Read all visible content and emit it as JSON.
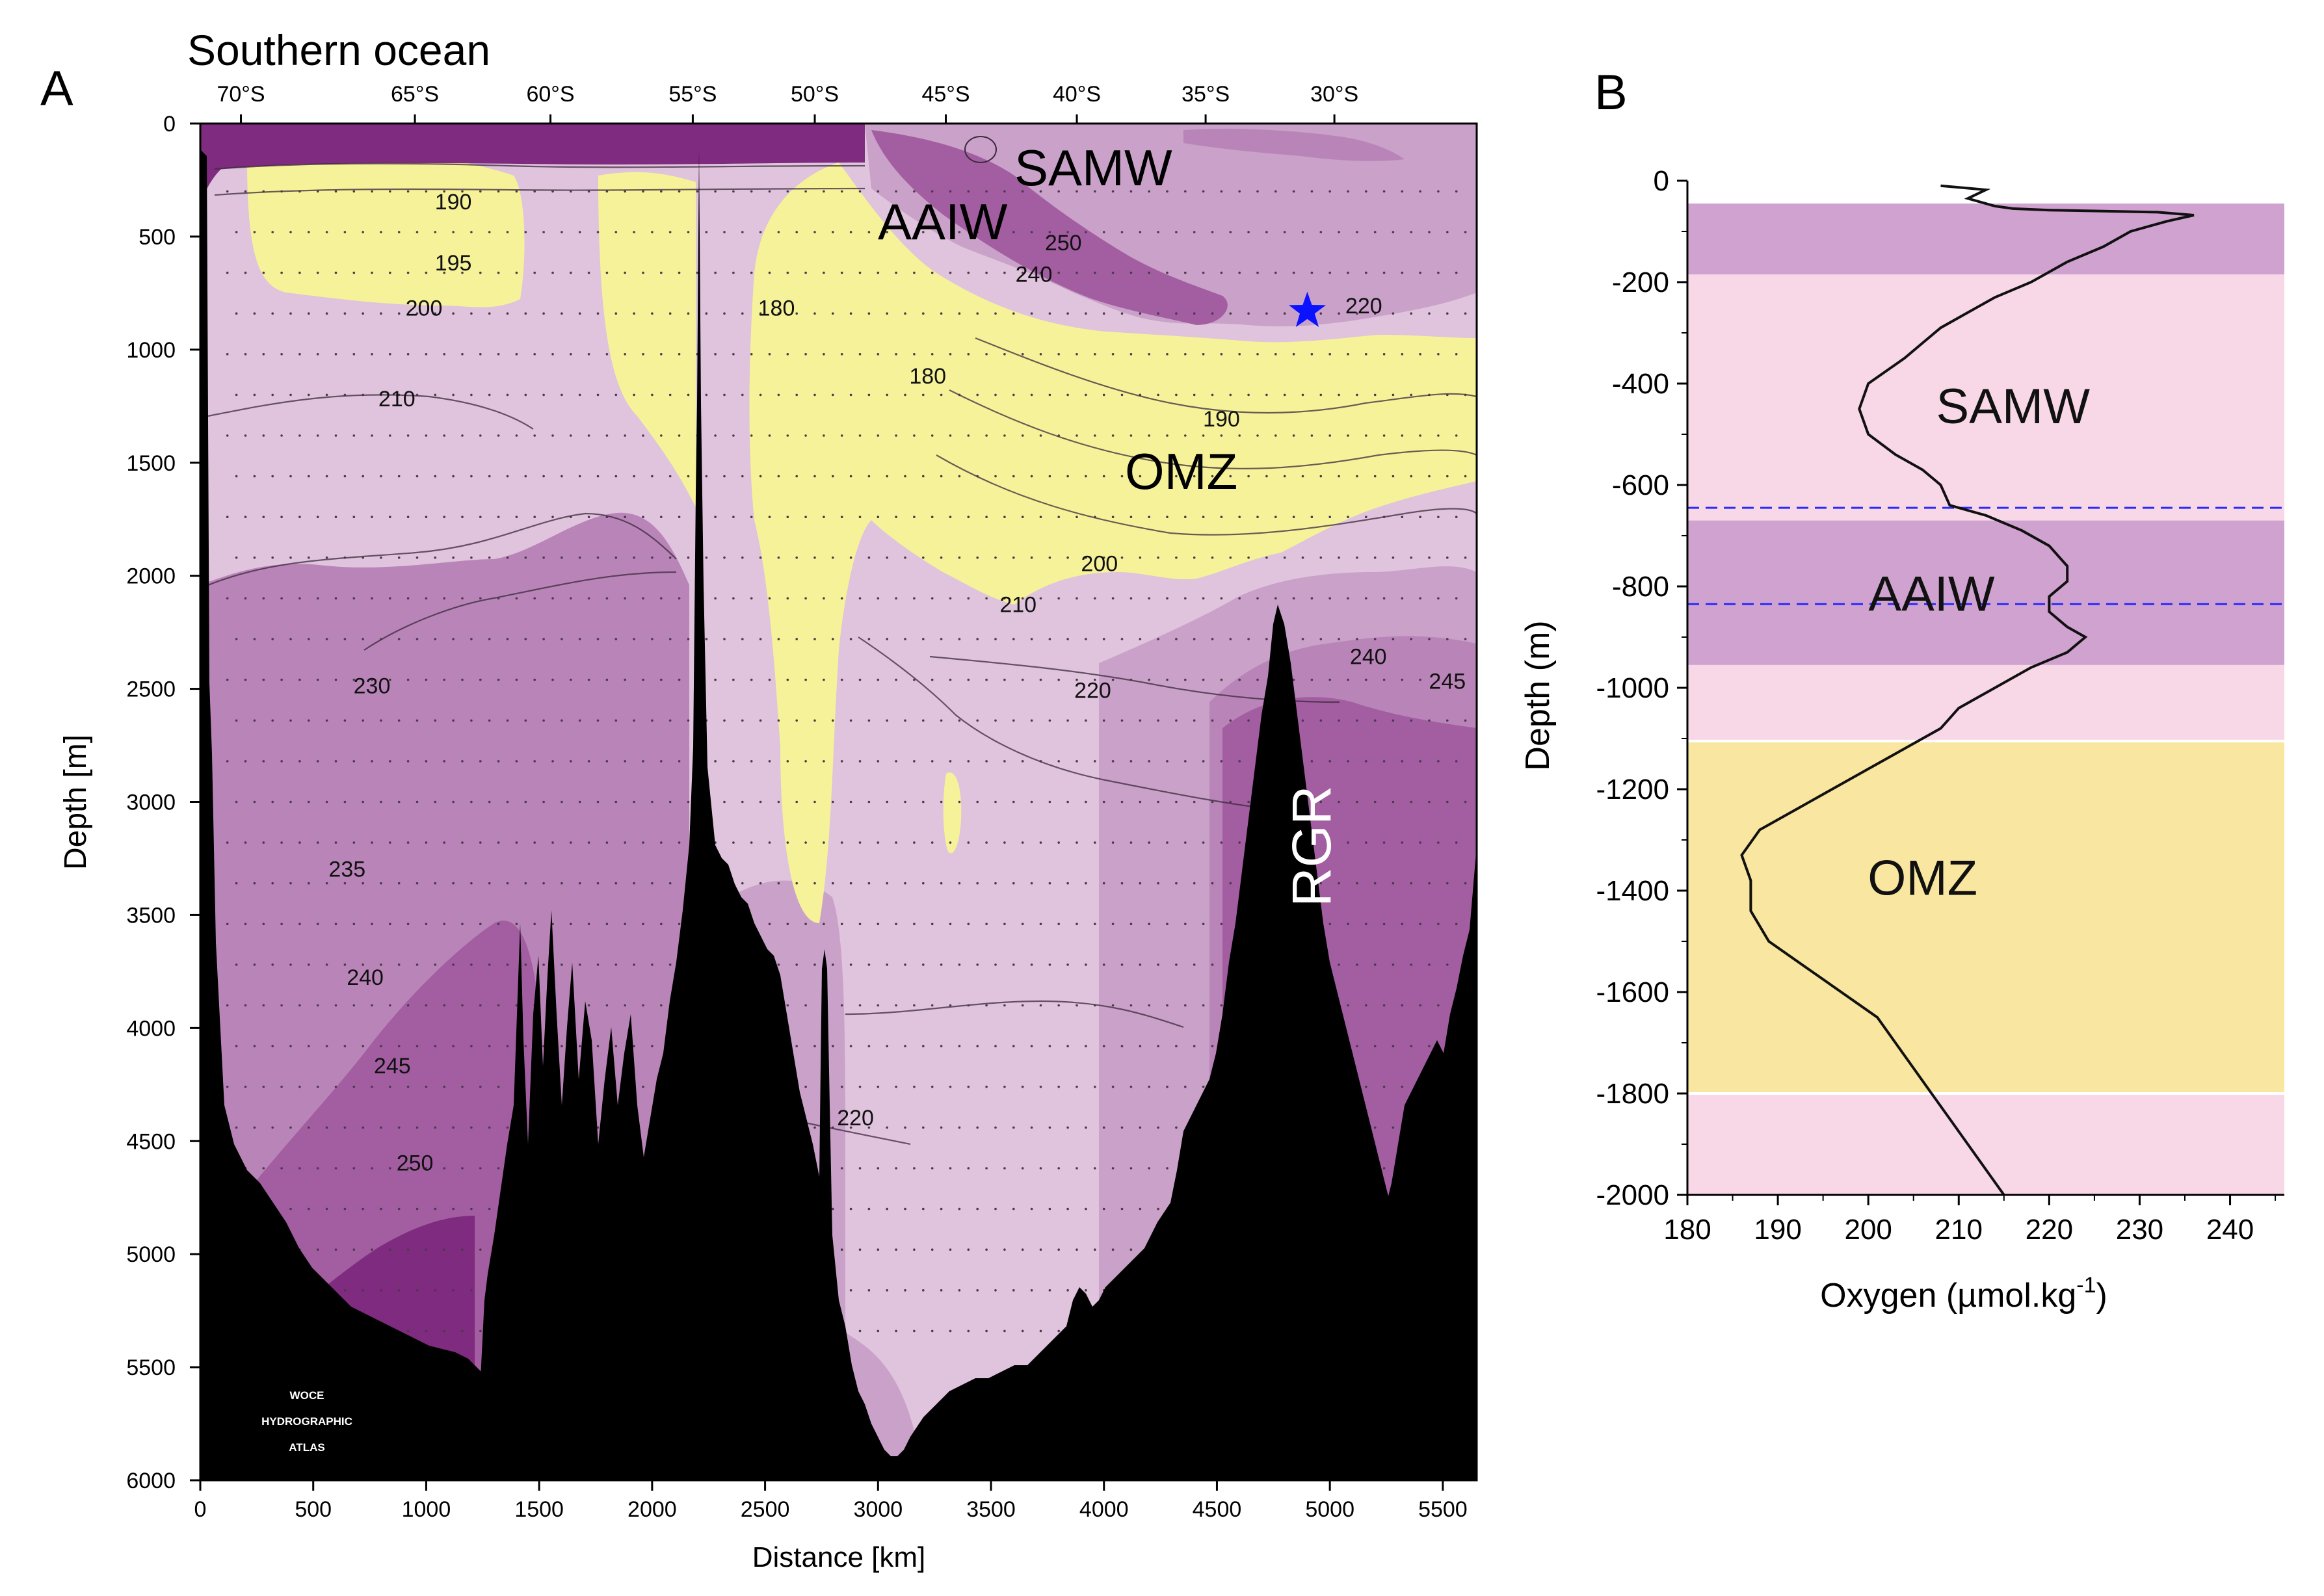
{
  "colors": {
    "oxy_low": "#f6f29a",
    "oxy_180": "#f8f2a4",
    "oxy_200": "#e6c9df",
    "oxy_210": "#e0c3dc",
    "oxy_220": "#c9a1c9",
    "oxy_230": "#b985b8",
    "oxy_240": "#a25ea1",
    "oxy_250": "#7f2b7f",
    "topography": "#000000",
    "band_purple": "#cfa2cf",
    "band_pink": "#f8d8e6",
    "band_yellow": "#f9e6a0",
    "star": "#0b12ff",
    "dashed_line": "#2a2aff",
    "profile_line": "#111111"
  },
  "chart_data": [
    {
      "type": "heatmap",
      "panel_label": "A",
      "title": "Southern ocean",
      "xlabel": "Distance [km]",
      "ylabel": "Depth [m]",
      "xlim": [
        0,
        5650
      ],
      "ylim": [
        6000,
        0
      ],
      "x_ticks": [
        "0",
        "500",
        "1000",
        "1500",
        "2000",
        "2500",
        "3000",
        "3500",
        "4000",
        "4500",
        "5000",
        "5500"
      ],
      "y_ticks": [
        "0",
        "500",
        "1000",
        "1500",
        "2000",
        "2500",
        "3000",
        "3500",
        "4000",
        "4500",
        "5000",
        "5500",
        "6000"
      ],
      "latitude_labels": [
        "70°S",
        "65°S",
        "60°S",
        "55°S",
        "50°S",
        "45°S",
        "40°S",
        "35°S",
        "30°S"
      ],
      "latitude_km": [
        180,
        950,
        1550,
        2180,
        2720,
        3300,
        3880,
        4450,
        5020
      ],
      "variable": "Dissolved oxygen (µmol/kg)",
      "contour_labels": [
        {
          "text": "190",
          "km": 1120,
          "depth": 380
        },
        {
          "text": "195",
          "km": 1120,
          "depth": 650
        },
        {
          "text": "200",
          "km": 990,
          "depth": 850
        },
        {
          "text": "210",
          "km": 870,
          "depth": 1250
        },
        {
          "text": "180",
          "km": 2550,
          "depth": 850
        },
        {
          "text": "180",
          "km": 3220,
          "depth": 1150
        },
        {
          "text": "250",
          "km": 3820,
          "depth": 560
        },
        {
          "text": "240",
          "km": 3690,
          "depth": 700
        },
        {
          "text": "220",
          "km": 5150,
          "depth": 840
        },
        {
          "text": "190",
          "km": 4520,
          "depth": 1340
        },
        {
          "text": "200",
          "km": 3980,
          "depth": 1980
        },
        {
          "text": "210",
          "km": 3620,
          "depth": 2160
        },
        {
          "text": "220",
          "km": 3950,
          "depth": 2540
        },
        {
          "text": "240",
          "km": 5170,
          "depth": 2390
        },
        {
          "text": "245",
          "km": 5520,
          "depth": 2500
        },
        {
          "text": "230",
          "km": 760,
          "depth": 2520
        },
        {
          "text": "235",
          "km": 650,
          "depth": 3330
        },
        {
          "text": "240",
          "km": 730,
          "depth": 3810
        },
        {
          "text": "245",
          "km": 850,
          "depth": 4200
        },
        {
          "text": "250",
          "km": 950,
          "depth": 4630
        },
        {
          "text": "220",
          "km": 2900,
          "depth": 4430
        }
      ],
      "water_mass_labels": [
        "SAMW",
        "AAIW",
        "OMZ",
        "RGR"
      ],
      "star_marker": {
        "km": 4900,
        "depth": 830
      },
      "watermark": [
        "WOCE",
        "HYDROGRAPHIC",
        "ATLAS"
      ]
    },
    {
      "type": "line",
      "panel_label": "B",
      "xlabel_main": "Oxygen (µmol.kg",
      "xlabel_sup": "-1",
      "xlabel_close": ")",
      "ylabel": "Depth (m)",
      "xlim": [
        180,
        246
      ],
      "ylim": [
        -2000,
        0
      ],
      "x_ticks": [
        "180",
        "190",
        "200",
        "210",
        "220",
        "230",
        "240"
      ],
      "y_ticks": [
        "0",
        "-200",
        "-400",
        "-600",
        "-800",
        "-1000",
        "-1200",
        "-1400",
        "-1600",
        "-1800",
        "-2000"
      ],
      "bands": [
        {
          "from": -45,
          "to": -185,
          "kind": "purple"
        },
        {
          "from": -185,
          "to": -670,
          "kind": "pink"
        },
        {
          "from": -670,
          "to": -955,
          "kind": "purple"
        },
        {
          "from": -955,
          "to": -1105,
          "kind": "pink"
        },
        {
          "from": -1105,
          "to": -1800,
          "kind": "yellow"
        },
        {
          "from": -1800,
          "to": -2000,
          "kind": "pink"
        }
      ],
      "dashed_lines": [
        -645,
        -835
      ],
      "band_labels": [
        {
          "text": "SAMW",
          "x": 216,
          "y": -445
        },
        {
          "text": "AAIW",
          "x": 207,
          "y": -815
        },
        {
          "text": "OMZ",
          "x": 206,
          "y": -1375
        }
      ],
      "series": [
        {
          "name": "Oxygen profile",
          "x": [
            208,
            213,
            211,
            214,
            216,
            220,
            226,
            232,
            236,
            233,
            229,
            226,
            222,
            218,
            214,
            211,
            208,
            206,
            204,
            200,
            199,
            200,
            203,
            206,
            208,
            209,
            213,
            217,
            220,
            222,
            222,
            220,
            220,
            222,
            224,
            222,
            218,
            214,
            210,
            208,
            204,
            200,
            196,
            192,
            188,
            186,
            187,
            187,
            189,
            193,
            197,
            201,
            203,
            205,
            207,
            209,
            211,
            213,
            215
          ],
          "y": [
            -10,
            -18,
            -35,
            -50,
            -55,
            -58,
            -60,
            -62,
            -68,
            -80,
            -100,
            -130,
            -160,
            -200,
            -230,
            -260,
            -290,
            -320,
            -350,
            -400,
            -450,
            -500,
            -540,
            -570,
            -600,
            -640,
            -660,
            -690,
            -720,
            -760,
            -790,
            -820,
            -850,
            -880,
            -900,
            -930,
            -960,
            -1000,
            -1040,
            -1080,
            -1120,
            -1160,
            -1200,
            -1240,
            -1280,
            -1330,
            -1380,
            -1440,
            -1500,
            -1550,
            -1600,
            -1650,
            -1700,
            -1750,
            -1800,
            -1850,
            -1900,
            -1950,
            -2000
          ]
        }
      ]
    }
  ]
}
